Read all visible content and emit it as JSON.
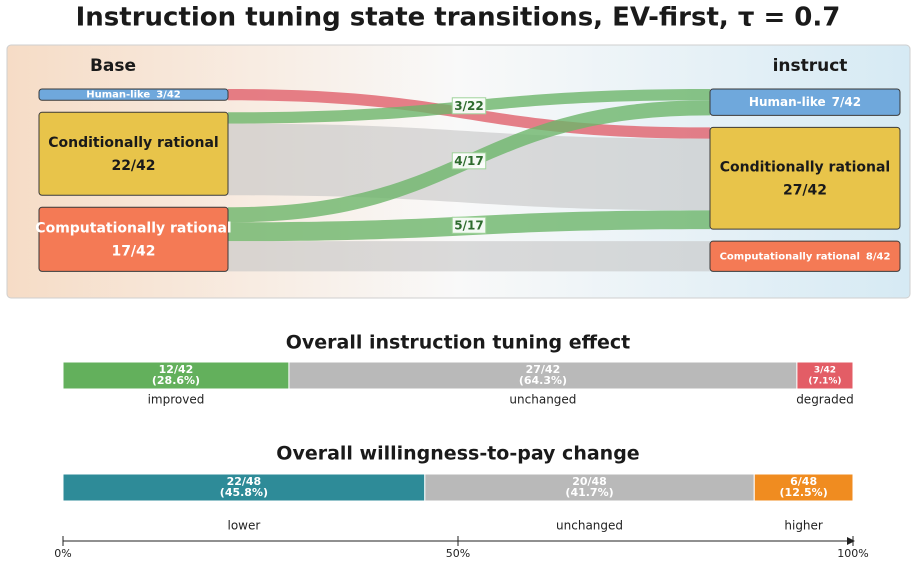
{
  "title": "Instruction tuning state transitions, EV-first, τ = 0.7",
  "chart_data": [
    {
      "type": "sankey",
      "left_title": "Base",
      "right_title": "instruct",
      "left_nodes": {
        "names": [
          "Human-like",
          "Conditionally rational",
          "Computationally rational"
        ],
        "values": [
          3,
          22,
          17
        ],
        "value_labels": [
          "3/42",
          "22/42",
          "17/42"
        ],
        "colors": [
          "#6fa8dc",
          "#e8c44a",
          "#f47a55"
        ]
      },
      "right_nodes": {
        "names": [
          "Human-like",
          "Conditionally rational",
          "Computationally rational"
        ],
        "values": [
          7,
          27,
          8
        ],
        "value_labels": [
          "7/42",
          "27/42",
          "8/42"
        ],
        "colors": [
          "#6fa8dc",
          "#e8c44a",
          "#f47a55"
        ]
      },
      "flows": {
        "sources": [
          0,
          1,
          1,
          2,
          2,
          2
        ],
        "targets": [
          1,
          0,
          1,
          0,
          1,
          2
        ],
        "values": [
          3,
          3,
          19,
          4,
          5,
          8
        ],
        "value_labels": [
          null,
          "3/22",
          null,
          "4/17",
          "5/17",
          null
        ],
        "colors": [
          "#e0606b",
          "#6db56a",
          "#c4c4c4",
          "#6db56a",
          "#6db56a",
          "#c4c4c4"
        ]
      }
    },
    {
      "type": "stacked_bar",
      "title": "Overall instruction tuning effect",
      "categories": [
        "improved",
        "unchanged",
        "degraded"
      ],
      "values": [
        28.6,
        64.3,
        7.1
      ],
      "count_labels": [
        "12/42",
        "27/42",
        "3/42"
      ],
      "value_labels": [
        "(28.6%)",
        "(64.3%)",
        "(7.1%)"
      ],
      "colors": [
        "#63b05c",
        "#b9b9b9",
        "#e35d66"
      ],
      "xlim": [
        0,
        100
      ]
    },
    {
      "type": "stacked_bar",
      "title": "Overall willingness-to-pay change",
      "categories": [
        "lower",
        "unchanged",
        "higher"
      ],
      "values": [
        45.8,
        41.7,
        12.5
      ],
      "count_labels": [
        "22/48",
        "20/48",
        "6/48"
      ],
      "value_labels": [
        "(45.8%)",
        "(41.7%)",
        "(12.5%)"
      ],
      "colors": [
        "#2e8b98",
        "#b9b9b9",
        "#f08c20"
      ],
      "xlim": [
        0,
        100
      ],
      "xticks": [
        {
          "value": 0,
          "label": "0%"
        },
        {
          "value": 50,
          "label": "50%"
        },
        {
          "value": 100,
          "label": "100%"
        }
      ]
    }
  ]
}
